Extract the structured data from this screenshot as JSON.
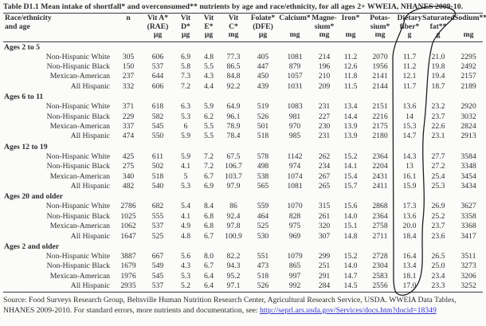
{
  "title": "Table D1.1  Mean intake of shortfall* and overconsumed** nutrients by age and race/ethnicity, for all ages 2+ WWEIA, NHANES 2009-10.",
  "table": {
    "row_header": {
      "lines": [
        "Race/ethnicity",
        "and age"
      ]
    },
    "columns": [
      {
        "id": "n",
        "lines": [
          "n"
        ],
        "unit": ""
      },
      {
        "id": "vit_a",
        "lines": [
          "Vit A*",
          "(RAE)"
        ],
        "unit": "µg"
      },
      {
        "id": "vit_d",
        "lines": [
          "Vit",
          "D*"
        ],
        "unit": "µg"
      },
      {
        "id": "vit_e",
        "lines": [
          "Vit",
          "E*"
        ],
        "unit": "µg"
      },
      {
        "id": "vit_c",
        "lines": [
          "Vit",
          "C*"
        ],
        "unit": "mg"
      },
      {
        "id": "folate",
        "lines": [
          "Folate*",
          "(DFE)"
        ],
        "unit": "µg"
      },
      {
        "id": "calcium",
        "lines": [
          "Calcium*"
        ],
        "unit": "mg"
      },
      {
        "id": "magnesium",
        "lines": [
          "Magne-",
          "sium*"
        ],
        "unit": "mg"
      },
      {
        "id": "iron",
        "lines": [
          "Iron*"
        ],
        "unit": "mg"
      },
      {
        "id": "potassium",
        "lines": [
          "Potas-",
          "sium*"
        ],
        "unit": "mg"
      },
      {
        "id": "fiber",
        "lines": [
          "Dietary",
          "fiber*"
        ],
        "unit": "g"
      },
      {
        "id": "sat_fat",
        "lines": [
          "Saturated",
          "fat**"
        ],
        "unit": "g"
      },
      {
        "id": "sodium",
        "lines": [
          "Sodium**"
        ],
        "unit": "mg"
      }
    ],
    "sections": [
      {
        "label": "Ages 2 to 5",
        "rows": [
          {
            "label": "Non-Hispanic White",
            "values": [
              "305",
              "606",
              "6.9",
              "4.8",
              "77.3",
              "405",
              "1081",
              "214",
              "11.2",
              "2070",
              "11.7",
              "21.0",
              "2295"
            ]
          },
          {
            "label": "Non-Hispanic Black",
            "values": [
              "150",
              "537",
              "5.8",
              "5.5",
              "86.5",
              "447",
              "879",
              "196",
              "12.6",
              "1956",
              "11.2",
              "19.8",
              "2492"
            ]
          },
          {
            "label": "Mexican-American",
            "values": [
              "237",
              "644",
              "7.3",
              "4.3",
              "84.8",
              "450",
              "1057",
              "210",
              "11.8",
              "2141",
              "12.1",
              "19.4",
              "2157"
            ]
          },
          {
            "label": "All Hispanic",
            "values": [
              "332",
              "606",
              "7.2",
              "4.4",
              "92.2",
              "439",
              "1031",
              "209",
              "11.5",
              "2144",
              "11.7",
              "18.7",
              "2189"
            ]
          }
        ]
      },
      {
        "label": "Ages 6 to 11",
        "rows": [
          {
            "label": "Non-Hispanic White",
            "values": [
              "371",
              "618",
              "6.3",
              "5.9",
              "64.9",
              "519",
              "1083",
              "231",
              "13.4",
              "2151",
              "13.6",
              "23.2",
              "2920"
            ]
          },
          {
            "label": "Non-Hispanic Black",
            "values": [
              "229",
              "582",
              "5.3",
              "6.2",
              "96.1",
              "526",
              "981",
              "227",
              "14.4",
              "2216",
              "14",
              "23.7",
              "3032"
            ]
          },
          {
            "label": "Mexican-American",
            "values": [
              "337",
              "545",
              "6",
              "5.5",
              "78.9",
              "501",
              "970",
              "230",
              "13.9",
              "2175",
              "15.3",
              "22.6",
              "2824"
            ]
          },
          {
            "label": "All Hispanic",
            "values": [
              "474",
              "550",
              "5.9",
              "5.5",
              "78.4",
              "518",
              "985",
              "231",
              "13.9",
              "2180",
              "14.7",
              "23.1",
              "2913"
            ]
          }
        ]
      },
      {
        "label": "Ages 12 to 19",
        "rows": [
          {
            "label": "Non-Hispanic White",
            "values": [
              "425",
              "611",
              "5.9",
              "7.2",
              "67.5",
              "578",
              "1142",
              "262",
              "15.2",
              "2364",
              "14.3",
              "27.7",
              "3584"
            ]
          },
          {
            "label": "Non-Hispanic Black",
            "values": [
              "275",
              "502",
              "4.1",
              "7.2",
              "106.7",
              "498",
              "974",
              "234",
              "14.1",
              "2204",
              "13",
              "27.2",
              "3348"
            ]
          },
          {
            "label": "Mexican-American",
            "values": [
              "340",
              "518",
              "5",
              "6.7",
              "103.7",
              "538",
              "1074",
              "267",
              "15.4",
              "2431",
              "16.1",
              "25.4",
              "3454"
            ]
          },
          {
            "label": "All Hispanic",
            "values": [
              "482",
              "540",
              "5.3",
              "6.9",
              "97.9",
              "565",
              "1081",
              "265",
              "15.7",
              "2411",
              "15.9",
              "25.3",
              "3434"
            ]
          }
        ]
      },
      {
        "label": "Ages 20 and older",
        "rows": [
          {
            "label": "Non-Hispanic White",
            "values": [
              "2786",
              "682",
              "5.4",
              "8.4",
              "86",
              "559",
              "1070",
              "315",
              "15.6",
              "2868",
              "17.3",
              "26.9",
              "3627"
            ]
          },
          {
            "label": "Non-Hispanic Black",
            "values": [
              "1025",
              "555",
              "4.1",
              "6.8",
              "92.4",
              "464",
              "828",
              "261",
              "14.0",
              "2364",
              "13.6",
              "25.2",
              "3358"
            ]
          },
          {
            "label": "Mexican-American",
            "values": [
              "1062",
              "537",
              "4.9",
              "6.8",
              "97.8",
              "525",
              "975",
              "320",
              "15.1",
              "2758",
              "20.0",
              "23.7",
              "3368"
            ]
          },
          {
            "label": "All Hispanic",
            "values": [
              "1647",
              "525",
              "4.8",
              "6.7",
              "100.9",
              "530",
              "969",
              "307",
              "14.8",
              "2711",
              "18.4",
              "23.6",
              "3417"
            ]
          }
        ]
      },
      {
        "label": "Ages 2 and older",
        "rows": [
          {
            "label": "Non-Hispanic White",
            "values": [
              "3887",
              "667",
              "5.6",
              "8.0",
              "82.2",
              "551",
              "1079",
              "299",
              "15.2",
              "2728",
              "16.4",
              "26.5",
              "3511"
            ]
          },
          {
            "label": "Non-Hispanic Black",
            "values": [
              "1679",
              "549",
              "4.3",
              "6.7",
              "94.3",
              "473",
              "865",
              "251",
              "14.0",
              "2304",
              "13.4",
              "25.0",
              "3273"
            ]
          },
          {
            "label": "Mexican-American",
            "values": [
              "1976",
              "545",
              "5.3",
              "6.4",
              "95.2",
              "518",
              "997",
              "291",
              "14.7",
              "2583",
              "18.1",
              "23.4",
              "3206"
            ]
          },
          {
            "label": "All Hispanic",
            "values": [
              "2935",
              "537",
              "5.2",
              "6.4",
              "97.1",
              "526",
              "992",
              "284",
              "14.5",
              "2556",
              "17.0",
              "23.3",
              "3252"
            ]
          }
        ]
      }
    ]
  },
  "footer": {
    "source_text": "Source:  Food Surveys Research Group, Beltsville Human Nutrition Research Center, Agricultural Research Service, USDA. WWEIA Data Tables, NHANES 2009-2010. For standard errors, more nutrients and documentation, see: ",
    "link_text": "http://seprl.ars.usda.gov/Services/docs.htm?docid=18349"
  },
  "annotation": {
    "name": "hand-drawn pen loop circling the Dietary fiber column and crossing the word NHANES in the title",
    "color": "#1f1f1f"
  },
  "colors": {
    "text": "#2d2d2d",
    "link": "#3333cc",
    "background": "#fbfbfa",
    "rule": "#3c3c3c"
  }
}
